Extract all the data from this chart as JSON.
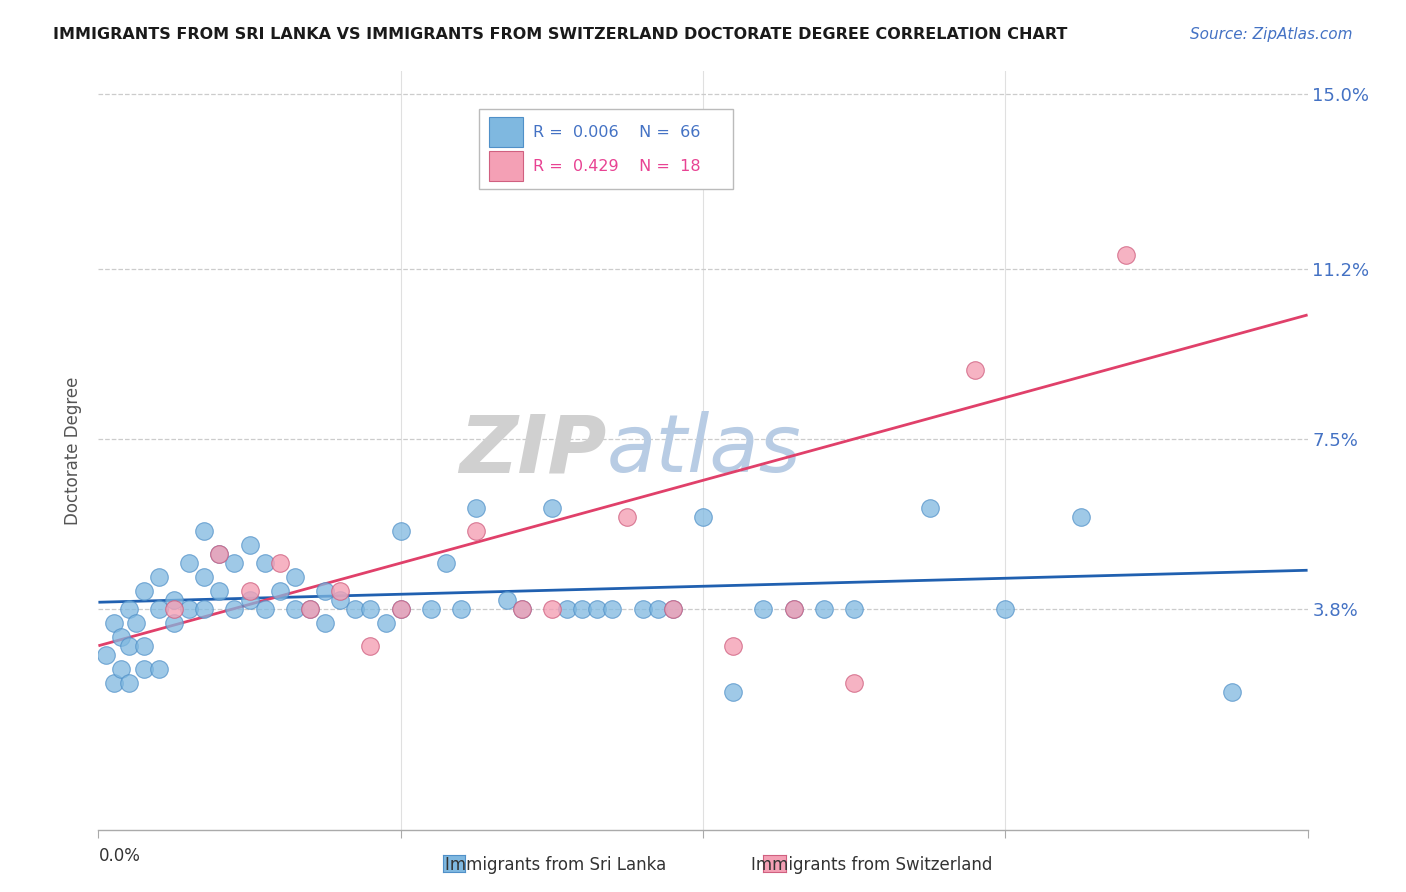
{
  "title": "IMMIGRANTS FROM SRI LANKA VS IMMIGRANTS FROM SWITZERLAND DOCTORATE DEGREE CORRELATION CHART",
  "source_text": "Source: ZipAtlas.com",
  "ylabel": "Doctorate Degree",
  "xlim": [
    0.0,
    0.08
  ],
  "ylim": [
    -0.01,
    0.155
  ],
  "plot_ylim": [
    -0.01,
    0.155
  ],
  "ytick_vals": [
    0.038,
    0.075,
    0.112,
    0.15
  ],
  "ytick_labels": [
    "3.8%",
    "7.5%",
    "11.2%",
    "15.0%"
  ],
  "sri_lanka_color": "#7fb8e0",
  "switzerland_color": "#f4a0b5",
  "sri_lanka_line_color": "#2060b0",
  "switzerland_line_color": "#e0406a",
  "background_color": "#ffffff",
  "grid_color": "#cccccc",
  "title_color": "#1a1a1a",
  "sl_x": [
    0.0005,
    0.001,
    0.001,
    0.0015,
    0.0015,
    0.002,
    0.002,
    0.002,
    0.0025,
    0.003,
    0.003,
    0.003,
    0.004,
    0.004,
    0.004,
    0.005,
    0.005,
    0.006,
    0.006,
    0.007,
    0.007,
    0.007,
    0.008,
    0.008,
    0.009,
    0.009,
    0.01,
    0.01,
    0.011,
    0.011,
    0.012,
    0.013,
    0.013,
    0.014,
    0.015,
    0.015,
    0.016,
    0.017,
    0.018,
    0.019,
    0.02,
    0.02,
    0.022,
    0.023,
    0.024,
    0.025,
    0.027,
    0.028,
    0.03,
    0.031,
    0.032,
    0.033,
    0.034,
    0.036,
    0.037,
    0.038,
    0.04,
    0.042,
    0.044,
    0.046,
    0.048,
    0.05,
    0.055,
    0.06,
    0.065,
    0.075
  ],
  "sl_y": [
    0.028,
    0.035,
    0.022,
    0.032,
    0.025,
    0.038,
    0.03,
    0.022,
    0.035,
    0.042,
    0.03,
    0.025,
    0.045,
    0.038,
    0.025,
    0.04,
    0.035,
    0.048,
    0.038,
    0.055,
    0.045,
    0.038,
    0.05,
    0.042,
    0.048,
    0.038,
    0.052,
    0.04,
    0.048,
    0.038,
    0.042,
    0.045,
    0.038,
    0.038,
    0.042,
    0.035,
    0.04,
    0.038,
    0.038,
    0.035,
    0.055,
    0.038,
    0.038,
    0.048,
    0.038,
    0.06,
    0.04,
    0.038,
    0.06,
    0.038,
    0.038,
    0.038,
    0.038,
    0.038,
    0.038,
    0.038,
    0.058,
    0.02,
    0.038,
    0.038,
    0.038,
    0.038,
    0.06,
    0.038,
    0.058,
    0.02
  ],
  "sw_x": [
    0.005,
    0.008,
    0.01,
    0.012,
    0.014,
    0.016,
    0.018,
    0.02,
    0.025,
    0.028,
    0.03,
    0.035,
    0.038,
    0.042,
    0.046,
    0.05,
    0.058,
    0.068
  ],
  "sw_y": [
    0.038,
    0.05,
    0.042,
    0.048,
    0.038,
    0.042,
    0.03,
    0.038,
    0.055,
    0.038,
    0.038,
    0.058,
    0.038,
    0.03,
    0.038,
    0.022,
    0.09,
    0.115
  ],
  "sl_r": 0.006,
  "sw_r": 0.429,
  "sl_n": 66,
  "sw_n": 18
}
